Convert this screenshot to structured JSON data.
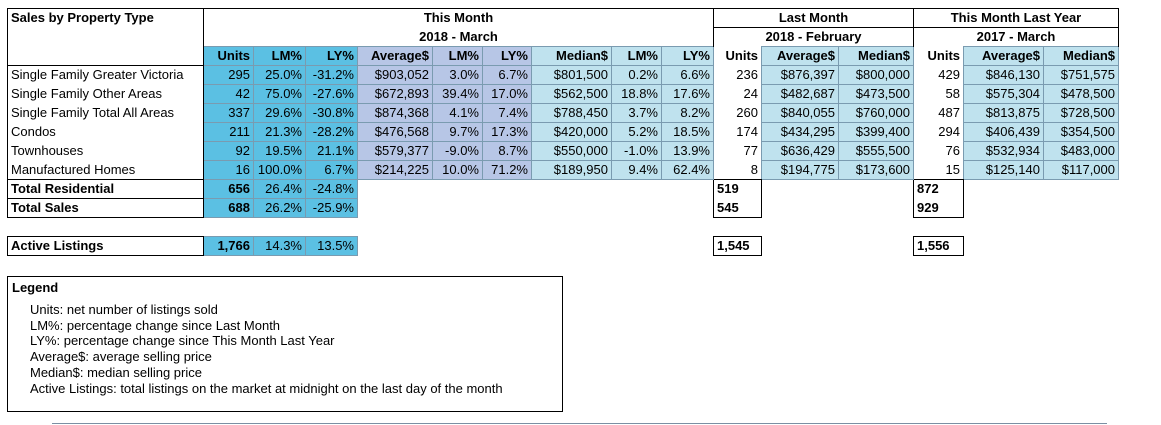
{
  "header": {
    "title": "Sales by Property Type",
    "this_month": "This Month",
    "this_month_sub": "2018 - March",
    "last_month": "Last Month",
    "last_month_sub": "2018 - February",
    "last_year": "This Month Last Year",
    "last_year_sub": "2017 - March"
  },
  "columns": [
    "Units",
    "LM%",
    "LY%",
    "Average$",
    "LM%",
    "LY%",
    "Median$",
    "LM%",
    "LY%",
    "Units",
    "Average$",
    "Median$",
    "Units",
    "Average$",
    "Median$"
  ],
  "rows": [
    {
      "label": "Single Family Greater Victoria",
      "values": [
        "295",
        "25.0%",
        "-31.2%",
        "$903,052",
        "3.0%",
        "6.7%",
        "$801,500",
        "0.2%",
        "6.6%",
        "236",
        "$876,397",
        "$800,000",
        "429",
        "$846,130",
        "$751,575"
      ]
    },
    {
      "label": "Single Family Other Areas",
      "values": [
        "42",
        "75.0%",
        "-27.6%",
        "$672,893",
        "39.4%",
        "17.0%",
        "$562,500",
        "18.8%",
        "17.6%",
        "24",
        "$482,687",
        "$473,500",
        "58",
        "$575,304",
        "$478,500"
      ]
    },
    {
      "label": "Single Family Total All Areas",
      "values": [
        "337",
        "29.6%",
        "-30.8%",
        "$874,368",
        "4.1%",
        "7.4%",
        "$788,450",
        "3.7%",
        "8.2%",
        "260",
        "$840,055",
        "$760,000",
        "487",
        "$813,875",
        "$728,500"
      ]
    },
    {
      "label": "Condos",
      "values": [
        "211",
        "21.3%",
        "-28.2%",
        "$476,568",
        "9.7%",
        "17.3%",
        "$420,000",
        "5.2%",
        "18.5%",
        "174",
        "$434,295",
        "$399,400",
        "294",
        "$406,439",
        "$354,500"
      ]
    },
    {
      "label": "Townhouses",
      "values": [
        "92",
        "19.5%",
        "21.1%",
        "$579,377",
        "-9.0%",
        "8.7%",
        "$550,000",
        "-1.0%",
        "13.9%",
        "77",
        "$636,429",
        "$555,500",
        "76",
        "$532,934",
        "$483,000"
      ]
    },
    {
      "label": "Manufactured Homes",
      "values": [
        "16",
        "100.0%",
        "6.7%",
        "$214,225",
        "10.0%",
        "71.2%",
        "$189,950",
        "9.4%",
        "62.4%",
        "8",
        "$194,775",
        "$173,600",
        "15",
        "$125,140",
        "$117,000"
      ]
    }
  ],
  "totals": [
    {
      "label": "Total Residential",
      "units": "656",
      "lm": "26.4%",
      "ly": "-24.8%",
      "last_month_units": "519",
      "last_year_units": "872"
    },
    {
      "label": "Total Sales",
      "units": "688",
      "lm": "26.2%",
      "ly": "-25.9%",
      "last_month_units": "545",
      "last_year_units": "929"
    }
  ],
  "active": {
    "label": "Active Listings",
    "units": "1,766",
    "lm": "14.3%",
    "ly": "13.5%",
    "last_month_units": "1,545",
    "last_year_units": "1,556"
  },
  "legend": {
    "title": "Legend",
    "items": [
      "Units: net number of listings sold",
      "LM%: percentage change since Last Month",
      "LY%: percentage change since This Month Last Year",
      "Average$: average selling price",
      "Median$: median selling price",
      "Active Listings: total listings on the market at midnight on the last day of the month"
    ]
  }
}
